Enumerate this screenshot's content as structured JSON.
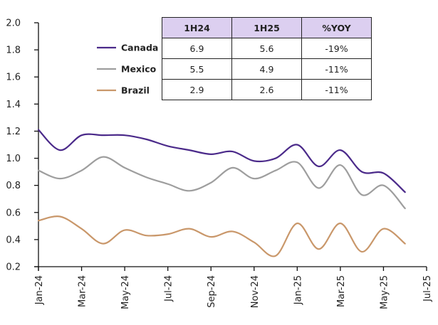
{
  "chart_data": {
    "type": "line",
    "title": "",
    "xlabel": "",
    "ylabel": "",
    "ylim": [
      0.2,
      2.0
    ],
    "yticks": [
      "2.0",
      "1.8",
      "1.6",
      "1.4",
      "1.2",
      "1.0",
      "0.8",
      "0.6",
      "0.4",
      "0.2"
    ],
    "ytick_values": [
      2.0,
      1.8,
      1.6,
      1.4,
      1.2,
      1.0,
      0.8,
      0.6,
      0.4,
      0.2
    ],
    "xticks": [
      "Jan-24",
      "Mar-24",
      "May-24",
      "Jul-24",
      "Sep-24",
      "Nov-24",
      "Jan-25",
      "Mar-25",
      "May-25",
      "Jul-25"
    ],
    "xtick_month_index": [
      0,
      2,
      4,
      6,
      8,
      10,
      12,
      14,
      16,
      18
    ],
    "xlim_month_index": [
      0,
      18
    ],
    "x": [
      "Jan-24",
      "Feb-24",
      "Mar-24",
      "Apr-24",
      "May-24",
      "Jun-24",
      "Jul-24",
      "Aug-24",
      "Sep-24",
      "Oct-24",
      "Nov-24",
      "Dec-24",
      "Jan-25",
      "Feb-25",
      "Mar-25",
      "Apr-25",
      "May-25",
      "Jun-25"
    ],
    "grid": false,
    "legend_position": "top-left",
    "series": [
      {
        "name": "Canada",
        "color": "#4b2a8a",
        "values": [
          1.21,
          1.06,
          1.17,
          1.17,
          1.17,
          1.14,
          1.09,
          1.06,
          1.03,
          1.05,
          0.98,
          1.0,
          1.1,
          0.94,
          1.06,
          0.9,
          0.89,
          0.75
        ]
      },
      {
        "name": "Mexico",
        "color": "#9e9e9e",
        "values": [
          0.91,
          0.85,
          0.91,
          1.01,
          0.93,
          0.86,
          0.81,
          0.76,
          0.82,
          0.93,
          0.85,
          0.91,
          0.97,
          0.78,
          0.95,
          0.73,
          0.8,
          0.63
        ]
      },
      {
        "name": "Brazil",
        "color": "#c9976a",
        "values": [
          0.54,
          0.57,
          0.48,
          0.37,
          0.47,
          0.43,
          0.44,
          0.48,
          0.42,
          0.46,
          0.38,
          0.28,
          0.52,
          0.33,
          0.52,
          0.31,
          0.48,
          0.37
        ]
      }
    ]
  },
  "table": {
    "headers": [
      "1H24",
      "1H25",
      "%YOY"
    ],
    "rows": [
      {
        "country": "Canada",
        "cells": [
          "6.9",
          "5.6",
          "-19%"
        ]
      },
      {
        "country": "Mexico",
        "cells": [
          "5.5",
          "4.9",
          "-11%"
        ]
      },
      {
        "country": "Brazil",
        "cells": [
          "2.9",
          "2.6",
          "-11%"
        ]
      }
    ],
    "header_color": "#dccff0"
  }
}
